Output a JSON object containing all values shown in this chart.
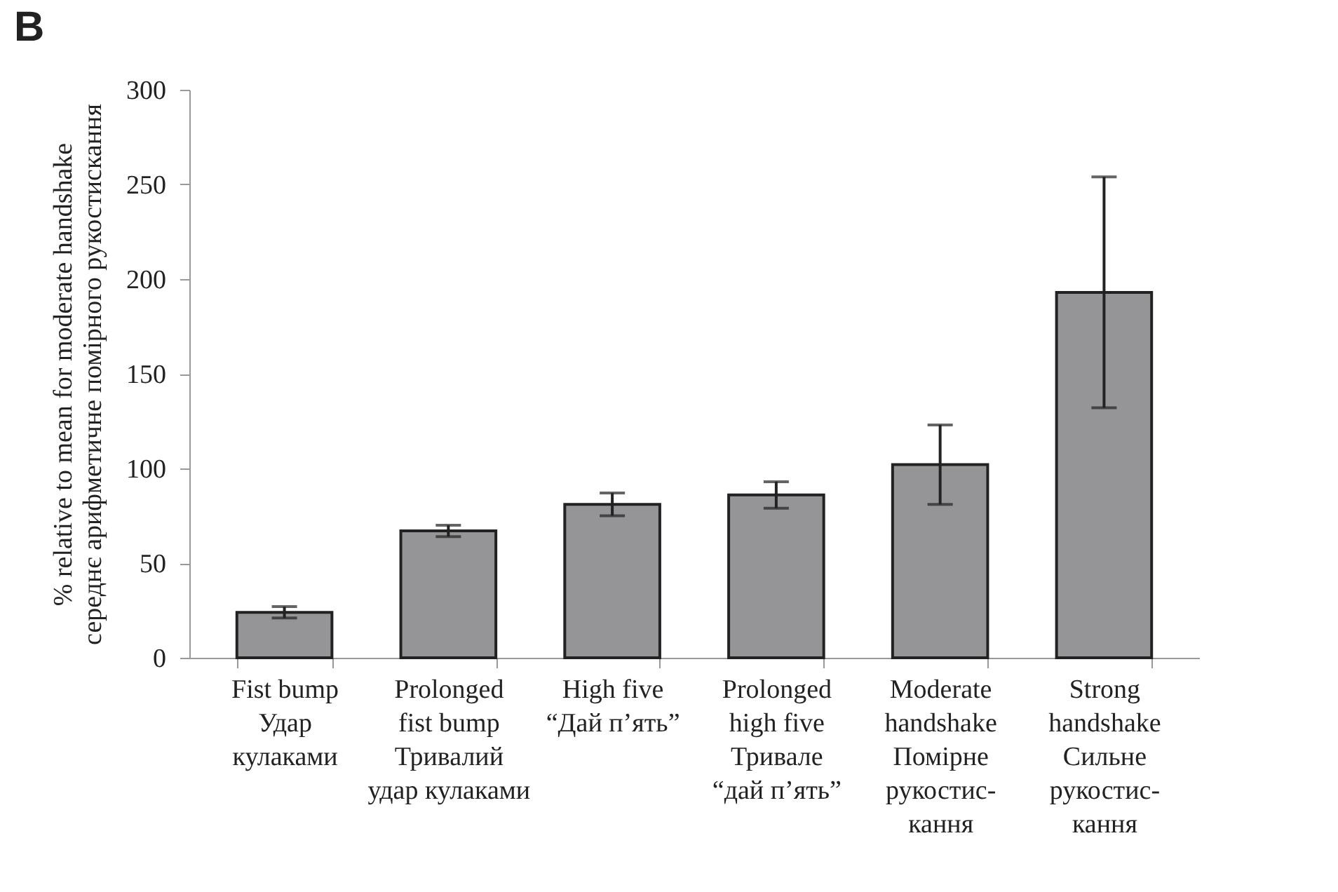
{
  "chart_data": {
    "type": "bar",
    "title": "B",
    "ylabel": "% relative to mean for moderate handshake\nсереднє арифметичне помірного рукостискання",
    "categories": [
      "Fist bump\nУдар\nкулаками",
      "Prolonged\nfist bump\nТривалий\nудар кулаками",
      "High five\n“Дай п’ять”",
      "Prolonged\nhigh five\nТривале\n“дай п’ять”",
      "Moderate\nhandshake\nПомірне\nрукостис-\nкання",
      "Strong\nhandshake\nСильне\nрукостис-\nкання"
    ],
    "values": [
      24,
      67,
      81,
      86,
      102,
      193
    ],
    "errors": [
      3,
      3,
      6,
      7,
      21,
      61
    ],
    "color": "#959597",
    "ylim": [
      0,
      300
    ],
    "yticks": [
      0,
      50,
      100,
      150,
      200,
      250,
      300
    ],
    "grid": false
  }
}
